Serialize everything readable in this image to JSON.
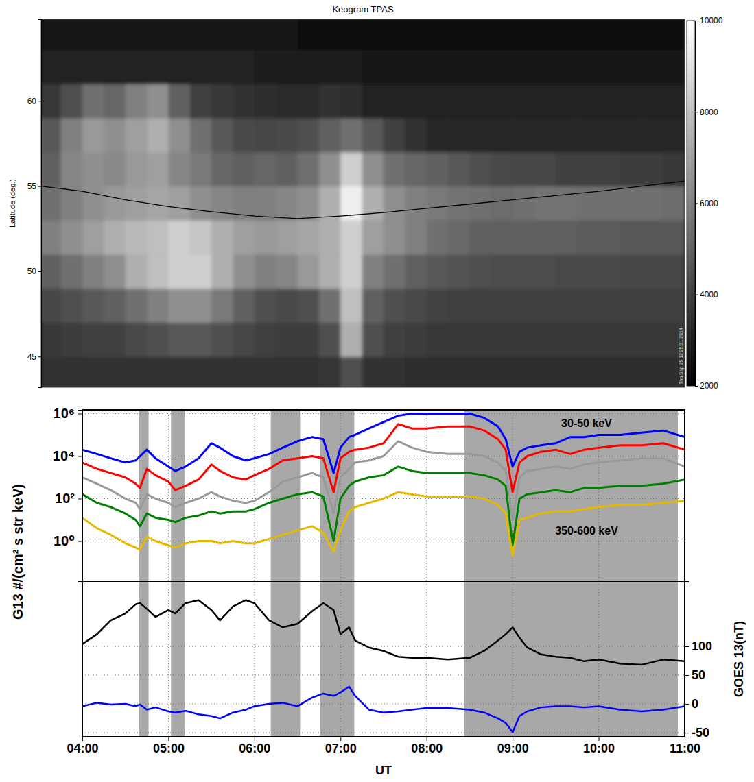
{
  "chart_data": [
    {
      "type": "heatmap",
      "title": "Keogram TPAS",
      "y_label": "Latitude (deg.)",
      "footnote": "Thu Sep 25 12:25:31 2014",
      "xlim": [
        3.52,
        11.0
      ],
      "ylim": [
        43.2,
        64.8
      ],
      "yticks": [
        45,
        50,
        55,
        60
      ],
      "tick_labels": "y",
      "x_edges": [
        3.5,
        3.75,
        4,
        4.25,
        4.5,
        4.75,
        5,
        5.25,
        5.5,
        5.75,
        6,
        6.25,
        6.5,
        6.75,
        7,
        7.25,
        7.5,
        7.75,
        8,
        8.25,
        8.5,
        8.75,
        9,
        9.25,
        9.5,
        9.75,
        10,
        10.25,
        10.5,
        10.75,
        11
      ],
      "y_edges": [
        43,
        45,
        47,
        49,
        51,
        53,
        55,
        57,
        59,
        61,
        63,
        65
      ],
      "cells": [
        [
          3500,
          3500,
          3500,
          3500,
          3500,
          3500,
          3600,
          3600,
          3500,
          3500,
          3500,
          3500,
          3500,
          3700,
          4500,
          3600,
          3500,
          3400,
          3400,
          3400,
          3400,
          3400,
          3400,
          3400,
          3400,
          3400,
          3400,
          3400,
          3400,
          3400
        ],
        [
          3800,
          3900,
          4000,
          4000,
          4300,
          4500,
          4800,
          4800,
          4500,
          4200,
          4000,
          3900,
          3900,
          4500,
          7500,
          4500,
          4000,
          3900,
          3800,
          3800,
          3800,
          3800,
          3800,
          3800,
          3800,
          3800,
          3800,
          3800,
          3800,
          3800
        ],
        [
          4200,
          4500,
          4800,
          5000,
          5500,
          6000,
          6500,
          6500,
          5800,
          5000,
          4500,
          4300,
          4500,
          5500,
          8000,
          5000,
          4500,
          4300,
          4100,
          4000,
          4000,
          4000,
          4000,
          4000,
          4000,
          4000,
          4000,
          4000,
          4000,
          4000
        ],
        [
          5000,
          5500,
          6000,
          6500,
          7500,
          8000,
          8500,
          8500,
          7500,
          6500,
          6000,
          6200,
          6800,
          7500,
          8500,
          6000,
          5500,
          5000,
          4800,
          4600,
          4500,
          4400,
          4400,
          4400,
          4300,
          4300,
          4300,
          4200,
          4200,
          4200
        ],
        [
          6000,
          6500,
          7000,
          7500,
          7800,
          8000,
          8500,
          8200,
          7500,
          7000,
          6800,
          7000,
          7200,
          7500,
          8500,
          7000,
          6500,
          6000,
          5500,
          5300,
          5000,
          5000,
          5000,
          5000,
          5000,
          4900,
          4900,
          4800,
          4800,
          4800
        ],
        [
          5500,
          6000,
          6500,
          6800,
          7000,
          7200,
          7000,
          6500,
          6200,
          6000,
          6000,
          6200,
          6500,
          7500,
          9500,
          7500,
          6500,
          6000,
          5800,
          5600,
          5500,
          5400,
          5500,
          5600,
          5600,
          5500,
          5500,
          5500,
          5500,
          5400
        ],
        [
          5000,
          6200,
          6500,
          6300,
          6800,
          7000,
          6200,
          5800,
          5200,
          5000,
          5200,
          5000,
          5500,
          6500,
          8500,
          6500,
          5500,
          5200,
          5000,
          4800,
          4500,
          4300,
          4200,
          4200,
          4000,
          4000,
          4000,
          3900,
          3900,
          3800
        ],
        [
          4800,
          6000,
          6800,
          6500,
          7000,
          7500,
          6500,
          5500,
          4800,
          4300,
          4200,
          4300,
          4500,
          5000,
          5500,
          4800,
          4000,
          3500,
          3200,
          3200,
          3200,
          3200,
          3200,
          3200,
          3200,
          3200,
          3200,
          3200,
          3200,
          3200
        ],
        [
          3800,
          4500,
          5500,
          5200,
          6000,
          6500,
          5000,
          4000,
          3800,
          3500,
          3400,
          3300,
          3300,
          3500,
          3400,
          3000,
          3000,
          3000,
          3000,
          3000,
          3000,
          3000,
          3000,
          3000,
          3000,
          3000,
          3000,
          3000,
          3000,
          3000
        ],
        [
          3000,
          3000,
          3000,
          3000,
          3000,
          3000,
          3000,
          3000,
          3000,
          3000,
          2900,
          2900,
          2900,
          2900,
          2900,
          2700,
          2700,
          2700,
          2700,
          2700,
          2700,
          2700,
          2700,
          2700,
          2700,
          2700,
          2700,
          2700,
          2700,
          2700
        ],
        [
          2700,
          2700,
          2700,
          2700,
          2700,
          2700,
          2700,
          2700,
          2700,
          2700,
          2700,
          2700,
          2500,
          2500,
          2500,
          2500,
          2500,
          2500,
          2500,
          2500,
          2500,
          2500,
          2500,
          2500,
          2500,
          2500,
          2500,
          2500,
          2500,
          2500
        ]
      ],
      "colorbar": {
        "range": [
          2000,
          10000
        ],
        "ticks": [
          2000,
          4000,
          6000,
          8000,
          10000
        ]
      },
      "series": [
        {
          "type": "line",
          "color": "#000000",
          "x": [
            3.52,
            4,
            4.5,
            5,
            5.5,
            6,
            6.5,
            7,
            7.5,
            8,
            8.5,
            9,
            9.5,
            10,
            10.5,
            11
          ],
          "values": [
            55.0,
            54.7,
            54.2,
            53.8,
            53.5,
            53.25,
            53.1,
            53.25,
            53.45,
            53.7,
            53.95,
            54.2,
            54.45,
            54.7,
            55.0,
            55.3
          ]
        }
      ]
    },
    {
      "type": "line",
      "log": "y",
      "y_label": "G13 #/(cm² s str keV)",
      "xlim": [
        4,
        11
      ],
      "ylim": [
        0.013,
        1500000
      ],
      "xticks": [
        4,
        5,
        6,
        7,
        8,
        9,
        10,
        11
      ],
      "yticks": [
        {
          "value": 1,
          "label": "10⁰"
        },
        {
          "value": 100,
          "label": "10²"
        },
        {
          "value": 10000,
          "label": "10⁴"
        },
        {
          "value": 1000000,
          "label": "10⁶"
        }
      ],
      "grid": true,
      "tick_labels": "y",
      "shaded": [
        [
          4.66,
          4.77
        ],
        [
          5.03,
          5.19
        ],
        [
          6.19,
          6.53
        ],
        [
          6.76,
          7.16
        ],
        [
          8.44,
          10.92
        ]
      ],
      "annotations": [
        {
          "text": "30-50 keV",
          "x": 9.86,
          "y": 355000
        },
        {
          "text": "350-600 keV",
          "x": 9.86,
          "y": 3
        }
      ],
      "x": [
        4.0,
        4.17,
        4.33,
        4.5,
        4.62,
        4.67,
        4.75,
        4.85,
        5.0,
        5.08,
        5.2,
        5.35,
        5.5,
        5.6,
        5.75,
        5.9,
        6.0,
        6.17,
        6.33,
        6.5,
        6.67,
        6.8,
        6.92,
        7.0,
        7.1,
        7.17,
        7.33,
        7.5,
        7.67,
        7.83,
        8.0,
        8.25,
        8.5,
        8.67,
        8.83,
        8.92,
        9.0,
        9.08,
        9.17,
        9.33,
        9.5,
        9.67,
        9.83,
        10.0,
        10.25,
        10.5,
        10.75,
        11.0
      ],
      "series": [
        {
          "color": "#0000ff",
          "values": [
            20000,
            12600,
            7900,
            5000,
            6300,
            10000,
            20000,
            7900,
            3200,
            2000,
            3200,
            7900,
            40000,
            25000,
            10000,
            6300,
            7900,
            12600,
            25000,
            50000,
            79000,
            63000,
            1600,
            25000,
            79000,
            100000,
            200000,
            400000,
            790000,
            1000000,
            1000000,
            1000000,
            1000000,
            630000,
            250000,
            63000,
            3200,
            16000,
            25000,
            32000,
            40000,
            79000,
            79000,
            100000,
            100000,
            126000,
            160000,
            79000
          ]
        },
        {
          "color": "#ff0000",
          "values": [
            5000,
            2500,
            1600,
            1000,
            500,
            320,
            2500,
            1260,
            630,
            250,
            400,
            790,
            4000,
            2000,
            1000,
            790,
            1260,
            2500,
            6300,
            7900,
            10000,
            7900,
            200,
            7900,
            16000,
            20000,
            25000,
            40000,
            320000,
            200000,
            200000,
            250000,
            250000,
            160000,
            63000,
            20000,
            200,
            5000,
            10000,
            16000,
            20000,
            12600,
            20000,
            25000,
            32000,
            32000,
            40000,
            20000
          ]
        },
        {
          "color": "#999999",
          "values": [
            1000,
            500,
            250,
            100,
            63,
            32,
            160,
            100,
            63,
            40,
            63,
            100,
            200,
            126,
            79,
            63,
            79,
            200,
            630,
            1000,
            1600,
            1000,
            20,
            1000,
            2500,
            5000,
            6300,
            10000,
            50000,
            25000,
            16000,
            12600,
            12600,
            10000,
            5000,
            2000,
            10,
            1000,
            2000,
            2500,
            3200,
            2500,
            4000,
            5000,
            6300,
            7900,
            7900,
            3200
          ]
        },
        {
          "color": "#008000",
          "values": [
            160,
            63,
            40,
            20,
            10,
            5,
            20,
            12.6,
            10,
            7.9,
            12.6,
            16,
            25,
            20,
            25,
            25,
            32,
            63,
            100,
            160,
            200,
            126,
            1,
            100,
            400,
            630,
            1000,
            1260,
            3200,
            2000,
            1600,
            1600,
            1600,
            1260,
            790,
            400,
            0.63,
            100,
            160,
            200,
            250,
            200,
            320,
            320,
            400,
            400,
            500,
            790
          ]
        },
        {
          "color": "#e6b800",
          "values": [
            12.6,
            4,
            2,
            0.79,
            0.5,
            0.4,
            1.6,
            1,
            0.63,
            0.5,
            0.79,
            1,
            1,
            0.79,
            1,
            0.79,
            0.79,
            1.26,
            2,
            3.2,
            5,
            2.5,
            0.32,
            3.2,
            25,
            40,
            63,
            100,
            200,
            160,
            126,
            126,
            126,
            100,
            50,
            20,
            0.2,
            10,
            12.6,
            20,
            25,
            25,
            32,
            40,
            50,
            50,
            63,
            79
          ]
        }
      ]
    },
    {
      "type": "line",
      "x_label": "UT",
      "y2_label": "GOES 13(nT)",
      "xlim": [
        4,
        11
      ],
      "y2lim": [
        -57,
        213
      ],
      "xticks": [
        {
          "value": 4,
          "label": "04:00"
        },
        {
          "value": 5,
          "label": "05:00"
        },
        {
          "value": 6,
          "label": "06:00"
        },
        {
          "value": 7,
          "label": "07:00"
        },
        {
          "value": 8,
          "label": "08:00"
        },
        {
          "value": 9,
          "label": "09:00"
        },
        {
          "value": 10,
          "label": "10:00"
        },
        {
          "value": 11,
          "label": "11:00"
        }
      ],
      "y2ticks": [
        -50,
        0,
        50,
        100
      ],
      "grid": true,
      "x": [
        4.0,
        4.17,
        4.33,
        4.5,
        4.62,
        4.67,
        4.75,
        4.85,
        5.0,
        5.08,
        5.2,
        5.35,
        5.5,
        5.6,
        5.75,
        5.9,
        6.0,
        6.17,
        6.33,
        6.5,
        6.67,
        6.8,
        6.92,
        7.0,
        7.1,
        7.17,
        7.33,
        7.5,
        7.67,
        7.83,
        8.0,
        8.25,
        8.5,
        8.67,
        8.83,
        8.92,
        9.0,
        9.08,
        9.17,
        9.33,
        9.5,
        9.67,
        9.83,
        10.0,
        10.25,
        10.5,
        10.75,
        11.0
      ],
      "series": [
        {
          "color": "#000000",
          "axis": "y2",
          "values": [
            104,
            121,
            145,
            157,
            173,
            175,
            165,
            151,
            163,
            157,
            175,
            180,
            163,
            145,
            169,
            180,
            175,
            145,
            133,
            139,
            161,
            175,
            163,
            121,
            133,
            110,
            98,
            92,
            82,
            80,
            80,
            77,
            80,
            92,
            110,
            121,
            133,
            115,
            98,
            86,
            82,
            80,
            74,
            77,
            70,
            68,
            77,
            74
          ]
        },
        {
          "color": "#0000ff",
          "axis": "y2",
          "values": [
            -4,
            2,
            -1,
            0,
            -4,
            -1,
            -10,
            -6,
            -13,
            -15,
            -12,
            -18,
            -21,
            -25,
            -15,
            -10,
            -4,
            0,
            2,
            -4,
            11,
            18,
            14,
            20,
            30,
            14,
            -10,
            -15,
            -13,
            -10,
            -7,
            -7,
            -10,
            -15,
            -25,
            -33,
            -49,
            -21,
            -13,
            -6,
            -4,
            -4,
            -6,
            -4,
            -10,
            -13,
            -10,
            -4
          ]
        }
      ]
    }
  ]
}
